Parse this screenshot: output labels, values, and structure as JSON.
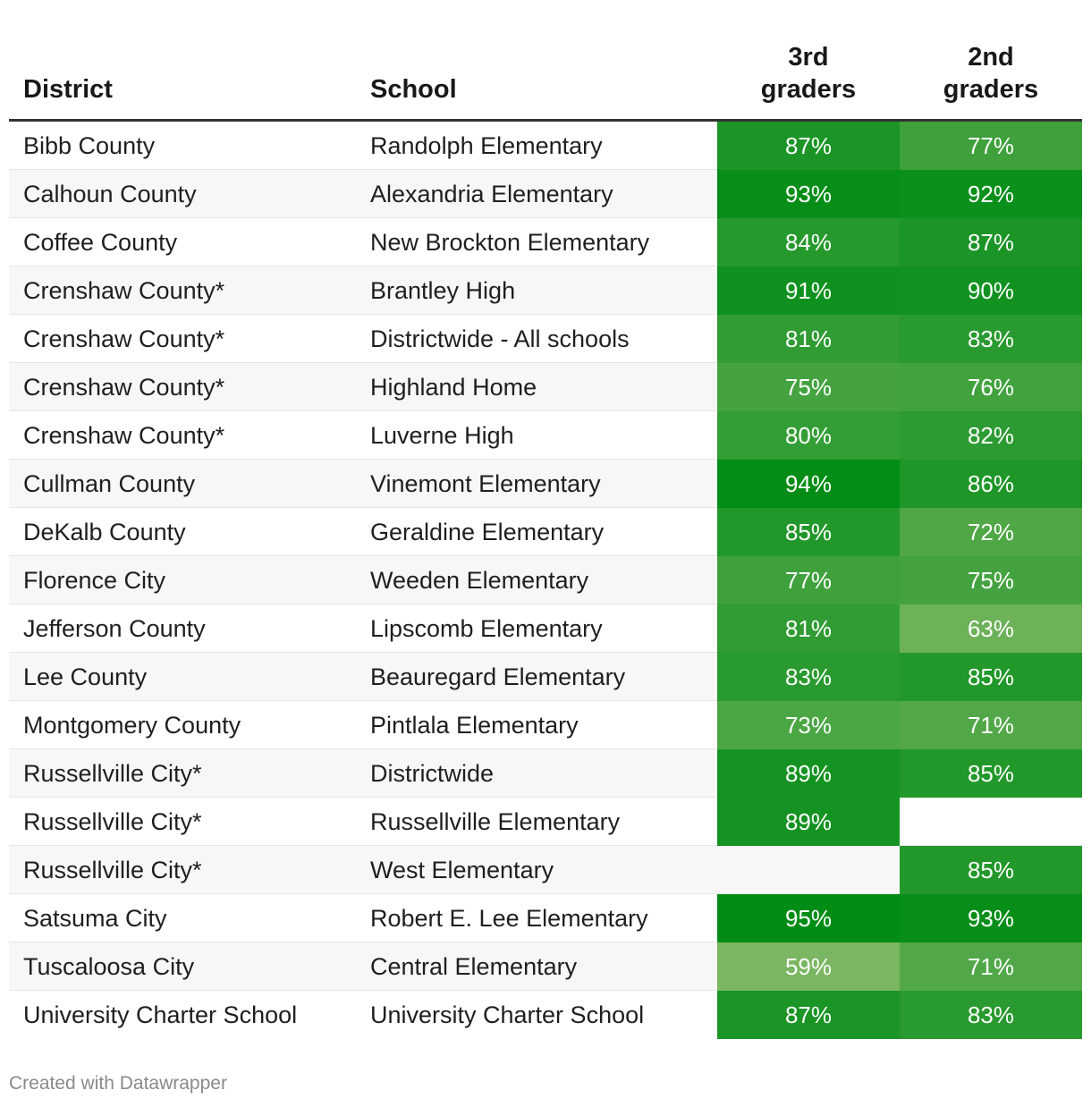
{
  "chart_data": {
    "type": "table",
    "columns": [
      "District",
      "School",
      "3rd graders",
      "2nd graders"
    ],
    "rows": [
      {
        "district": "Bibb County",
        "school": "Randolph Elementary",
        "g3": "87%",
        "g2": "77%"
      },
      {
        "district": "Calhoun County",
        "school": "Alexandria Elementary",
        "g3": "93%",
        "g2": "92%"
      },
      {
        "district": "Coffee County",
        "school": "New Brockton Elementary",
        "g3": "84%",
        "g2": "87%"
      },
      {
        "district": "Crenshaw County*",
        "school": "Brantley High",
        "g3": "91%",
        "g2": "90%"
      },
      {
        "district": "Crenshaw County*",
        "school": "Districtwide - All schools",
        "g3": "81%",
        "g2": "83%"
      },
      {
        "district": "Crenshaw County*",
        "school": "Highland Home",
        "g3": "75%",
        "g2": "76%"
      },
      {
        "district": "Crenshaw County*",
        "school": "Luverne High",
        "g3": "80%",
        "g2": "82%"
      },
      {
        "district": "Cullman County",
        "school": "Vinemont Elementary",
        "g3": "94%",
        "g2": "86%"
      },
      {
        "district": "DeKalb County",
        "school": "Geraldine Elementary",
        "g3": "85%",
        "g2": "72%"
      },
      {
        "district": "Florence City",
        "school": "Weeden Elementary",
        "g3": "77%",
        "g2": "75%"
      },
      {
        "district": "Jefferson County",
        "school": "Lipscomb Elementary",
        "g3": "81%",
        "g2": "63%"
      },
      {
        "district": "Lee County",
        "school": "Beauregard Elementary",
        "g3": "83%",
        "g2": "85%"
      },
      {
        "district": "Montgomery County",
        "school": "Pintlala Elementary",
        "g3": "73%",
        "g2": "71%"
      },
      {
        "district": "Russellville City*",
        "school": "Districtwide",
        "g3": "89%",
        "g2": "85%"
      },
      {
        "district": "Russellville City*",
        "school": "Russellville Elementary",
        "g3": "89%",
        "g2": ""
      },
      {
        "district": "Russellville City*",
        "school": "West Elementary",
        "g3": "",
        "g2": "85%"
      },
      {
        "district": "Satsuma City",
        "school": "Robert E. Lee Elementary",
        "g3": "95%",
        "g2": "93%"
      },
      {
        "district": "Tuscaloosa City",
        "school": "Central Elementary",
        "g3": "59%",
        "g2": "71%"
      },
      {
        "district": "University Charter School",
        "school": "University Charter School",
        "g3": "87%",
        "g2": "83%"
      }
    ],
    "color_scale": {
      "low": 59,
      "high": 95,
      "low_color": "#7bb662",
      "high_color": "#008c15"
    }
  },
  "header": {
    "district": "District",
    "school": "School",
    "col3_line1": "3rd",
    "col3_line2": "graders",
    "col2_line1": "2nd",
    "col2_line2": "graders"
  },
  "footer": {
    "credit": "Created with Datawrapper"
  }
}
